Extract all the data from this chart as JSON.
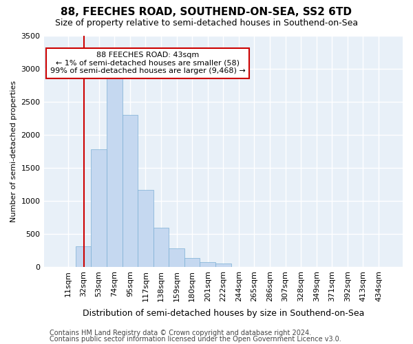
{
  "title": "88, FEECHES ROAD, SOUTHEND-ON-SEA, SS2 6TD",
  "subtitle": "Size of property relative to semi-detached houses in Southend-on-Sea",
  "xlabel": "Distribution of semi-detached houses by size in Southend-on-Sea",
  "ylabel": "Number of semi-detached properties",
  "footer1": "Contains HM Land Registry data © Crown copyright and database right 2024.",
  "footer2": "Contains public sector information licensed under the Open Government Licence v3.0.",
  "annotation_title": "88 FEECHES ROAD: 43sqm",
  "annotation_line1": "← 1% of semi-detached houses are smaller (58)",
  "annotation_line2": "99% of semi-detached houses are larger (9,468) →",
  "bar_categories": [
    "11sqm",
    "32sqm",
    "53sqm",
    "74sqm",
    "95sqm",
    "117sqm",
    "138sqm",
    "159sqm",
    "180sqm",
    "201sqm",
    "222sqm",
    "244sqm",
    "265sqm",
    "286sqm",
    "307sqm",
    "328sqm",
    "349sqm",
    "371sqm",
    "392sqm",
    "413sqm",
    "434sqm"
  ],
  "bar_values": [
    0,
    320,
    1780,
    2920,
    2300,
    1170,
    600,
    285,
    140,
    80,
    55,
    0,
    0,
    0,
    0,
    0,
    0,
    0,
    0,
    0,
    0
  ],
  "bar_color": "#c5d8f0",
  "bar_edge_color": "#7bafd4",
  "vline_color": "#cc0000",
  "ylim": [
    0,
    3500
  ],
  "yticks": [
    0,
    500,
    1000,
    1500,
    2000,
    2500,
    3000,
    3500
  ],
  "bg_color": "#ffffff",
  "plot_bg_color": "#e8f0f8",
  "grid_color": "#ffffff",
  "annotation_box_color": "#ffffff",
  "annotation_border_color": "#cc0000",
  "title_fontsize": 11,
  "subtitle_fontsize": 9,
  "ylabel_fontsize": 8,
  "tick_fontsize": 8,
  "annotation_fontsize": 8,
  "xlabel_fontsize": 9,
  "footer_fontsize": 7
}
